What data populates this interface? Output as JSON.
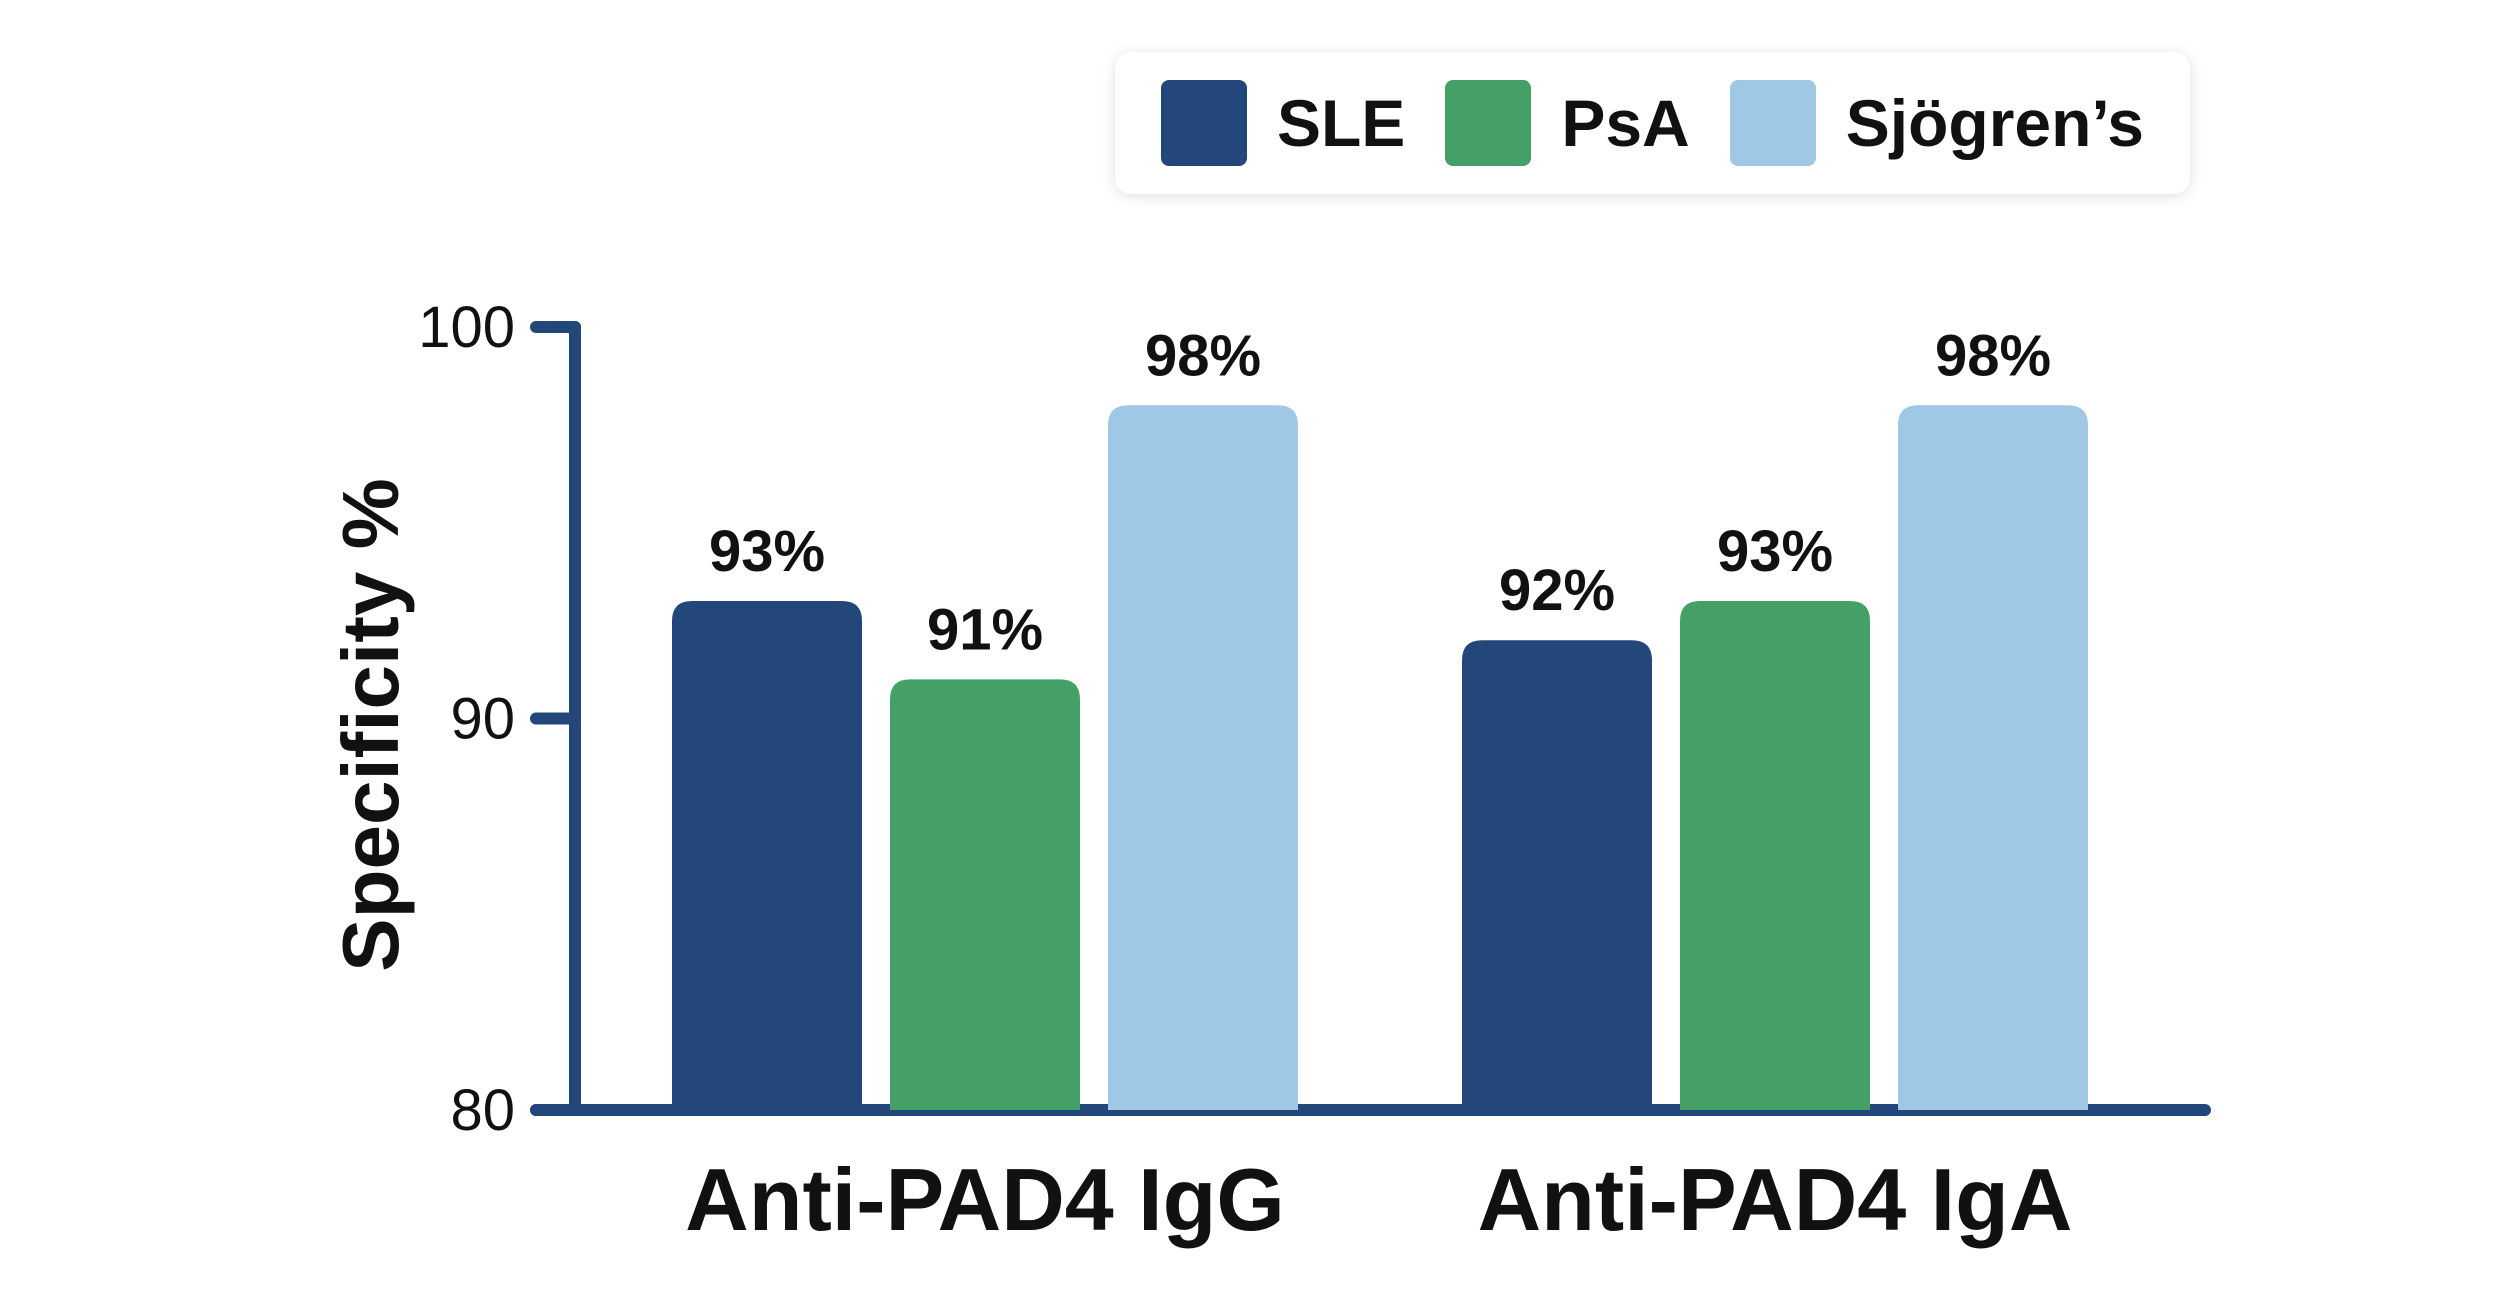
{
  "chart_data": {
    "type": "bar",
    "title": "",
    "ylabel": "Specificity %",
    "xlabel": "",
    "ylim": [
      80,
      100
    ],
    "yticks": [
      80,
      90,
      100
    ],
    "categories": [
      "Anti-PAD4 IgG",
      "Anti-PAD4 IgA"
    ],
    "series": [
      {
        "name": "SLE",
        "color": "#23477b",
        "values": [
          93,
          92
        ],
        "labels": [
          "93%",
          "92%"
        ]
      },
      {
        "name": "PsA",
        "color": "#45a067",
        "values": [
          91,
          93
        ],
        "labels": [
          "91%",
          "93%"
        ]
      },
      {
        "name": "Sjögren’s",
        "color": "#9fc8e7",
        "values": [
          98,
          98
        ],
        "labels": [
          "98%",
          "98%"
        ]
      }
    ],
    "axis_color": "#23477b",
    "grid": false,
    "legend_position": "top-right"
  }
}
